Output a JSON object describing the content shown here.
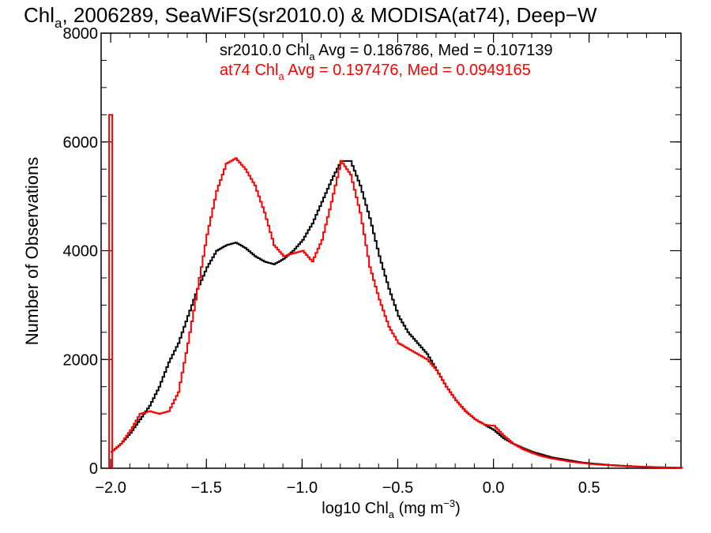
{
  "chart_data": {
    "type": "line",
    "title": {
      "main": "Chl",
      "sub": "a",
      "rest": ", 2006289, SeaWiFS(sr2010.0) & MODISA(at74), Deep−W"
    },
    "xlabel": {
      "pre": "log10 Chl",
      "sub": "a",
      "mid": " (mg m",
      "sup": "−3",
      "post": ")"
    },
    "ylabel": "Number of Observations",
    "xlim": [
      -2.05,
      0.98
    ],
    "ylim": [
      0,
      8000
    ],
    "x_ticks": [
      -2.0,
      -1.5,
      -1.0,
      -0.5,
      0.0,
      0.5
    ],
    "x_tick_labels": [
      "−2.0",
      "−1.5",
      "−1.0",
      "−0.5",
      "0.0",
      "0.5"
    ],
    "y_ticks": [
      0,
      2000,
      4000,
      6000,
      8000
    ],
    "y_tick_labels": [
      "0",
      "2000",
      "4000",
      "6000",
      "8000"
    ],
    "grid": false,
    "legend": [
      {
        "pre": "sr2010.0 Chl",
        "sub": "a",
        "post": " Avg = 0.186786, Med = 0.107139",
        "color": "#000000"
      },
      {
        "pre": "at74 Chl",
        "sub": "a",
        "post": " Avg = 0.197476, Med = 0.0949165",
        "color": "#ff0000"
      }
    ],
    "legend_placement": "top",
    "series": [
      {
        "color": "#000000",
        "x": [
          -2.0,
          -1.95,
          -1.9,
          -1.85,
          -1.8,
          -1.75,
          -1.7,
          -1.65,
          -1.6,
          -1.55,
          -1.5,
          -1.45,
          -1.4,
          -1.35,
          -1.3,
          -1.25,
          -1.2,
          -1.15,
          -1.1,
          -1.05,
          -1.0,
          -0.95,
          -0.9,
          -0.85,
          -0.8,
          -0.75,
          -0.7,
          -0.65,
          -0.6,
          -0.55,
          -0.5,
          -0.45,
          -0.4,
          -0.35,
          -0.3,
          -0.25,
          -0.2,
          -0.15,
          -0.1,
          -0.05,
          0.0,
          0.05,
          0.1,
          0.15,
          0.2,
          0.25,
          0.3,
          0.35,
          0.4,
          0.45,
          0.5,
          0.6,
          0.7,
          0.8,
          0.9,
          0.98
        ],
        "y": [
          300,
          450,
          650,
          900,
          1150,
          1500,
          1950,
          2300,
          2800,
          3300,
          3700,
          4000,
          4100,
          4150,
          4050,
          3900,
          3800,
          3750,
          3850,
          4000,
          4200,
          4500,
          4900,
          5300,
          5650,
          5650,
          5200,
          4600,
          3900,
          3300,
          2800,
          2500,
          2300,
          2100,
          1800,
          1500,
          1250,
          1050,
          900,
          800,
          700,
          550,
          450,
          370,
          300,
          250,
          200,
          170,
          140,
          110,
          90,
          60,
          40,
          25,
          15,
          10
        ]
      },
      {
        "color": "#ff0000",
        "x": [
          -2.0,
          -1.95,
          -1.9,
          -1.85,
          -1.8,
          -1.75,
          -1.7,
          -1.65,
          -1.6,
          -1.55,
          -1.5,
          -1.45,
          -1.4,
          -1.35,
          -1.3,
          -1.25,
          -1.2,
          -1.15,
          -1.1,
          -1.05,
          -1.0,
          -0.95,
          -0.9,
          -0.85,
          -0.8,
          -0.75,
          -0.7,
          -0.65,
          -0.6,
          -0.55,
          -0.5,
          -0.45,
          -0.4,
          -0.35,
          -0.3,
          -0.25,
          -0.2,
          -0.15,
          -0.1,
          -0.05,
          0.0,
          0.05,
          0.1,
          0.15,
          0.2,
          0.25,
          0.3,
          0.35,
          0.4,
          0.45,
          0.5,
          0.6,
          0.7,
          0.8,
          0.9,
          0.98
        ],
        "y": [
          300,
          450,
          700,
          1000,
          1050,
          1000,
          1050,
          1400,
          2300,
          3300,
          4300,
          5100,
          5600,
          5700,
          5500,
          5200,
          4700,
          4100,
          3900,
          3950,
          4000,
          3800,
          4200,
          4900,
          5650,
          5400,
          4700,
          3700,
          3100,
          2600,
          2300,
          2200,
          2100,
          2000,
          1800,
          1500,
          1250,
          1050,
          900,
          800,
          780,
          600,
          450,
          350,
          280,
          220,
          180,
          150,
          120,
          100,
          80,
          55,
          35,
          22,
          12,
          8
        ]
      },
      {
        "color": "#ff0000",
        "spike": true,
        "x": [
          -2.0
        ],
        "y": [
          6500
        ]
      }
    ]
  }
}
